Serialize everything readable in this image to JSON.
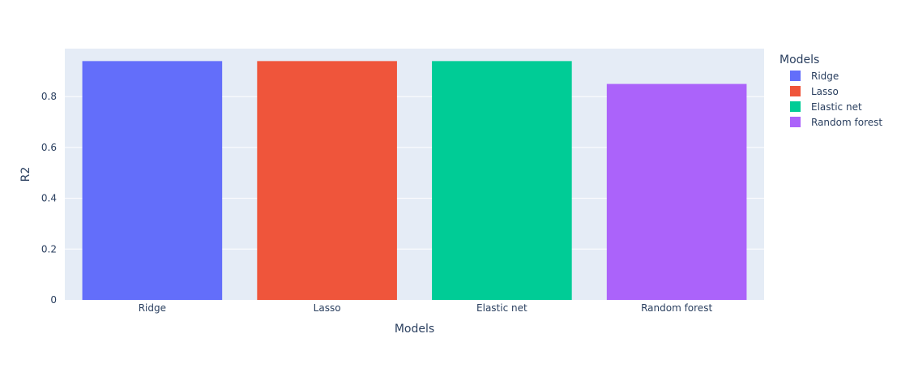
{
  "chart_data": {
    "type": "bar",
    "xlabel": "Models",
    "ylabel": "R2",
    "categories": [
      "Ridge",
      "Lasso",
      "Elastic net",
      "Random forest"
    ],
    "values": [
      0.94,
      0.94,
      0.94,
      0.85
    ],
    "colors": [
      "#636efa",
      "#ef553b",
      "#00cc96",
      "#ab63fa"
    ],
    "ylim": [
      0,
      0.989
    ],
    "yticks": [
      0,
      0.2,
      0.4,
      0.6,
      0.8
    ],
    "ytick_labels": [
      "0",
      "0.2",
      "0.4",
      "0.6",
      "0.8"
    ],
    "grid": true,
    "plot_background": "#e5ecf6",
    "legend": {
      "title": "Models",
      "placement": "right",
      "entries": [
        "Ridge",
        "Lasso",
        "Elastic net",
        "Random forest"
      ]
    }
  }
}
